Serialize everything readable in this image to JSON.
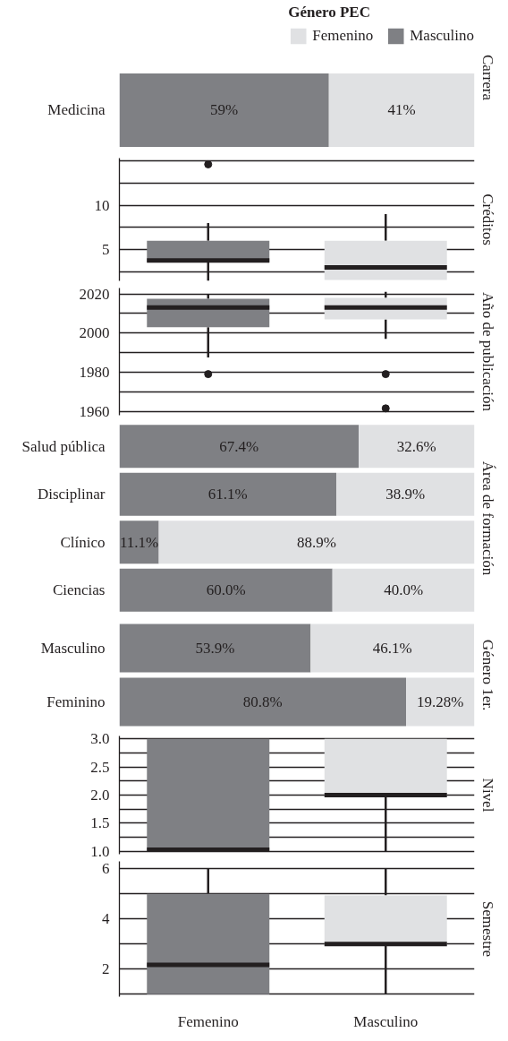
{
  "chart_data": [
    {
      "type": "bar",
      "orientation": "horizontal",
      "stacked": true,
      "title": "Carrera",
      "legend_title": "Género PEC",
      "legend": "top",
      "categories": [
        "Medicina"
      ],
      "series": [
        {
          "name": "Masculino",
          "color": "#7f8084",
          "values": [
            59
          ],
          "value_labels": [
            "59%"
          ]
        },
        {
          "name": "Femenino",
          "color": "#e0e1e3",
          "values": [
            41
          ],
          "value_labels": [
            "41%"
          ]
        }
      ],
      "tick_labels": "y"
    },
    {
      "type": "box",
      "title": "Créditos",
      "categories": [
        null,
        null
      ],
      "colors": [
        "#7f8084",
        "#e0e1e3"
      ],
      "boxes": [
        {
          "low": 1.5,
          "q1": 3.6,
          "median": 3.8,
          "q3": 6,
          "high": 8,
          "outliers": [
            14.6
          ]
        },
        {
          "low": 1.6,
          "q1": 1.6,
          "median": 3.0,
          "q3": 6,
          "high": 9
        }
      ],
      "ylim": [
        1.5,
        15.3
      ],
      "yticks": [
        {
          "value": 2.5,
          "label": null
        },
        5,
        {
          "value": 7.5,
          "label": null
        },
        10,
        {
          "value": 12.5,
          "label": null
        },
        {
          "value": 15,
          "label": null
        }
      ],
      "grid": "y",
      "tick_labels": "y"
    },
    {
      "type": "box",
      "title": "Año de publicación",
      "categories": [
        null,
        null
      ],
      "colors": [
        "#7f8084",
        "#e0e1e3"
      ],
      "boxes": [
        {
          "low": 1987.5,
          "q1": 2003,
          "median": 2013,
          "q3": 2017.5,
          "high": 2020,
          "outliers": [
            1979
          ]
        },
        {
          "low": 1997,
          "q1": 2007,
          "median": 2013,
          "q3": 2018,
          "high": 2021,
          "outliers": [
            1979,
            1961.5
          ]
        }
      ],
      "ylim": [
        1958,
        2023
      ],
      "yticks": [
        1960,
        {
          "value": 1970,
          "label": null
        },
        1980,
        {
          "value": 1990,
          "label": null
        },
        2000,
        {
          "value": 2010,
          "label": null
        },
        2020
      ],
      "grid": "y",
      "tick_labels": "y"
    },
    {
      "type": "bar",
      "orientation": "horizontal",
      "stacked": true,
      "title": "Área de formación",
      "categories": [
        "Salud pública",
        "Disciplinar",
        "Clínico",
        "Ciencias"
      ],
      "series": [
        {
          "color": "#7f8084",
          "values": [
            67.4,
            61.1,
            11.1,
            60.0
          ],
          "value_labels": [
            "67.4%",
            "61.1%",
            "11.1%",
            "60.0%"
          ]
        },
        {
          "color": "#e0e1e3",
          "values": [
            32.6,
            38.9,
            88.9,
            40.0
          ],
          "value_labels": [
            "32.6%",
            "38.9%",
            "88.9%",
            "40.0%"
          ]
        }
      ],
      "tick_labels": "y"
    },
    {
      "type": "bar",
      "orientation": "horizontal",
      "stacked": true,
      "title": "Género 1er.",
      "categories": [
        "Masculino",
        "Feminino"
      ],
      "series": [
        {
          "color": "#7f8084",
          "values": [
            53.9,
            80.8
          ],
          "value_labels": [
            "53.9%",
            "80.8%"
          ]
        },
        {
          "color": "#e0e1e3",
          "values": [
            46.1,
            19.28
          ],
          "value_labels": [
            "46.1%",
            "19.28%"
          ]
        }
      ],
      "tick_labels": "y"
    },
    {
      "type": "box",
      "title": "Nivel",
      "categories": [
        null,
        null
      ],
      "colors": [
        "#7f8084",
        "#e0e1e3"
      ],
      "boxes": [
        {
          "low": 1.0,
          "q1": 1.0,
          "median": 1.03,
          "q3": 3.0,
          "high": 3.0
        },
        {
          "low": 1.0,
          "q1": 2.0,
          "median": 2.0,
          "q3": 3.0,
          "high": 3.0
        }
      ],
      "ylim": [
        0.95,
        3.05
      ],
      "yticks": [
        {
          "value": 1,
          "label": "1.0"
        },
        {
          "value": 1.25,
          "label": null
        },
        1.5,
        {
          "value": 1.75,
          "label": null
        },
        {
          "value": 2,
          "label": "2.0"
        },
        {
          "value": 2.25,
          "label": null
        },
        2.5,
        {
          "value": 2.75,
          "label": null
        },
        {
          "value": 3,
          "label": "3.0"
        }
      ],
      "grid": "y",
      "tick_labels": "y"
    },
    {
      "type": "box",
      "title": "Semestre",
      "categories": [
        "Femenino",
        "Masculino"
      ],
      "colors": [
        "#7f8084",
        "#e0e1e3"
      ],
      "boxes": [
        {
          "low": 1,
          "q1": 1,
          "median": 2.17,
          "q3": 5,
          "high": 6
        },
        {
          "low": 1,
          "q1": 3,
          "median": 3.0,
          "q3": 4.94,
          "high": 6
        }
      ],
      "ylim": [
        0.9,
        6.3
      ],
      "yticks": [
        {
          "value": 1,
          "label": null
        },
        2,
        {
          "value": 3,
          "label": null
        },
        4,
        {
          "value": 5,
          "label": null
        },
        6
      ],
      "grid": "y"
    }
  ]
}
